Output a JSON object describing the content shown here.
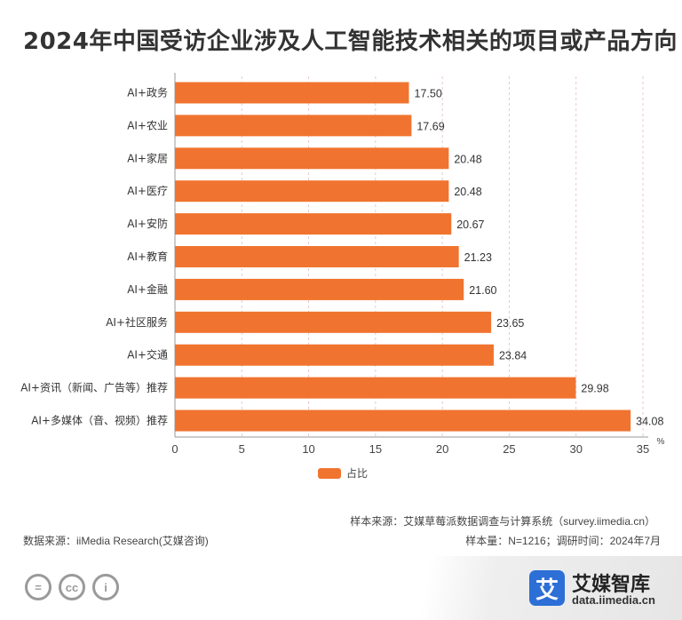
{
  "title": "2024年中国受访企业涉及人工智能技术相关的项目或产品方向",
  "chart_data": {
    "type": "bar",
    "orientation": "horizontal",
    "categories": [
      "AI+政务",
      "AI+农业",
      "AI+家居",
      "AI+医疗",
      "AI+安防",
      "AI+教育",
      "AI+金融",
      "AI+社区服务",
      "AI+交通",
      "AI+资讯（新闻、广告等）推荐",
      "AI+多媒体（音、视频）推荐"
    ],
    "value_labels": [
      "17.50",
      "17.69",
      "20.48",
      "20.48",
      "20.67",
      "21.23",
      "21.60",
      "23.65",
      "23.84",
      "29.98",
      "34.08"
    ],
    "series": [
      {
        "name": "占比",
        "values": [
          17.5,
          17.69,
          20.48,
          20.48,
          20.67,
          21.23,
          21.6,
          23.65,
          23.84,
          29.98,
          34.08
        ]
      }
    ],
    "xlim": [
      0,
      35
    ],
    "xticks": [
      "0",
      "5",
      "10",
      "15",
      "20",
      "25",
      "30",
      "35"
    ],
    "unit_label": "%",
    "bar_color": "#f0742f",
    "grid": "vertical dashed",
    "legend_position": "bottom"
  },
  "legend": {
    "label": "占比"
  },
  "source": {
    "sample_source": "样本来源：艾媒草莓派数据调查与计算系统（survey.iimedia.cn）",
    "sample_size": "样本量：N=1216；调研时间：2024年7月",
    "data_source": "数据来源：iiMedia Research(艾媒咨询)"
  },
  "footer": {
    "license_icons": [
      "=",
      "cc",
      "i"
    ],
    "logo_char": "艾",
    "brand_name": "艾媒智库",
    "brand_url": "data.iimedia.cn"
  }
}
